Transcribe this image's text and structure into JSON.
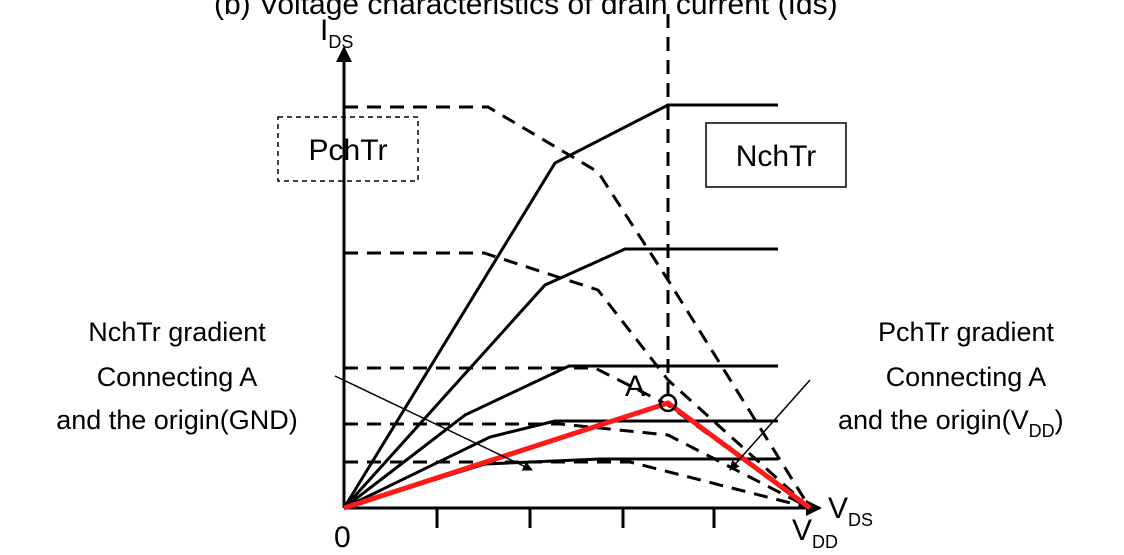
{
  "labels": {
    "top_partial": "(b) Voltage characteristics of drain current (Ids)",
    "y_axis": "I",
    "y_axis_sub": "DS",
    "x_axis": "V",
    "x_axis_sub": "DS",
    "origin": "0",
    "vdd": "V",
    "vdd_sub": "DD",
    "point_a": "A",
    "pch_box": "PchTr",
    "nch_box": "NchTr"
  },
  "annotations": {
    "nch_gradient": [
      "NchTr gradient",
      "Connecting A",
      "and the origin(GND)"
    ],
    "pch_gradient": [
      "PchTr gradient",
      "Connecting A"
    ],
    "pch_gradient_last": "and the origin(V",
    "pch_gradient_sub": "DD",
    "pch_gradient_close": ")"
  },
  "colors": {
    "load_line": "#ff1a1a",
    "curves": "#000000"
  }
}
